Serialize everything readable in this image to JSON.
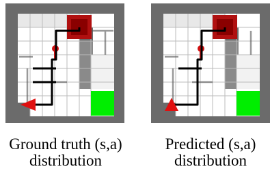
{
  "figure": {
    "panels": [
      {
        "caption_line1": "Ground truth (s,a)",
        "caption_line2": "distribution"
      },
      {
        "caption_line1": "Predicted (s,a)",
        "caption_line2": "distribution"
      }
    ]
  }
}
